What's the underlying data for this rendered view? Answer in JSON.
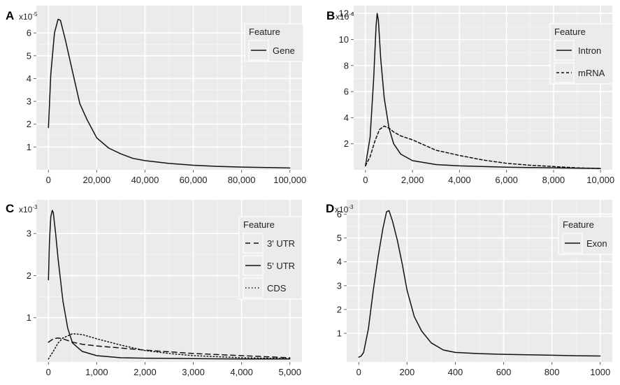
{
  "figure": {
    "panels": [
      "A",
      "B",
      "C",
      "D"
    ]
  },
  "chart_data": [
    {
      "panel": "A",
      "type": "line",
      "exponent": "x10-5",
      "x_ticks": [
        0,
        20000,
        40000,
        60000,
        80000,
        100000
      ],
      "x_tick_labels": [
        "0",
        "20,000",
        "40,000",
        "60,000",
        "80,000",
        "100,000"
      ],
      "y_ticks": [
        1,
        2,
        3,
        4,
        5,
        6
      ],
      "y_tick_labels": [
        "1",
        "2",
        "3",
        "4",
        "5",
        "6"
      ],
      "xlim": [
        -5000,
        105000
      ],
      "ylim": [
        0,
        7.2
      ],
      "grid": true,
      "legend": {
        "title": "Feature",
        "placement": "top-right",
        "entries": [
          {
            "label": "Gene",
            "dash": "solid"
          }
        ]
      },
      "series": [
        {
          "name": "Gene",
          "dash": "solid",
          "x": [
            0,
            1000,
            2500,
            4000,
            5000,
            7000,
            10000,
            13000,
            16000,
            20000,
            25000,
            30000,
            35000,
            40000,
            50000,
            60000,
            70000,
            80000,
            90000,
            100000
          ],
          "y": [
            1.85,
            4.2,
            6.0,
            6.6,
            6.55,
            5.7,
            4.3,
            2.9,
            2.2,
            1.4,
            0.95,
            0.7,
            0.5,
            0.4,
            0.28,
            0.2,
            0.15,
            0.12,
            0.1,
            0.08
          ]
        }
      ]
    },
    {
      "panel": "B",
      "type": "line",
      "exponent": "x10-4",
      "x_ticks": [
        0,
        2000,
        4000,
        6000,
        8000,
        10000
      ],
      "x_tick_labels": [
        "0",
        "2,000",
        "4,000",
        "6,000",
        "8,000",
        "10,000"
      ],
      "y_ticks": [
        2,
        4,
        6,
        8,
        10,
        12
      ],
      "y_tick_labels": [
        "2",
        "4",
        "6",
        "8",
        "10",
        "12"
      ],
      "xlim": [
        -500,
        10500
      ],
      "ylim": [
        0,
        12.6
      ],
      "grid": true,
      "legend": {
        "title": "Feature",
        "placement": "top-right",
        "entries": [
          {
            "label": "Intron",
            "dash": "solid"
          },
          {
            "label": "mRNA",
            "dash": "dashed"
          }
        ]
      },
      "series": [
        {
          "name": "Intron",
          "dash": "solid",
          "x": [
            0,
            200,
            350,
            450,
            500,
            550,
            650,
            800,
            1000,
            1200,
            1500,
            2000,
            3000,
            4000,
            6000,
            8000,
            10000
          ],
          "y": [
            0.3,
            2.5,
            7.0,
            11.0,
            12.0,
            11.5,
            8.5,
            5.5,
            3.2,
            2.0,
            1.2,
            0.7,
            0.4,
            0.3,
            0.2,
            0.15,
            0.1
          ]
        },
        {
          "name": "mRNA",
          "dash": "dashed",
          "x": [
            0,
            200,
            400,
            600,
            800,
            1000,
            1200,
            1500,
            2000,
            2500,
            3000,
            4000,
            5000,
            6000,
            7000,
            8000,
            9000,
            10000
          ],
          "y": [
            0.3,
            1.0,
            2.2,
            3.1,
            3.35,
            3.2,
            2.9,
            2.6,
            2.3,
            1.9,
            1.5,
            1.1,
            0.75,
            0.5,
            0.35,
            0.25,
            0.15,
            0.1
          ]
        }
      ]
    },
    {
      "panel": "C",
      "type": "line",
      "exponent": "x10-3",
      "x_ticks": [
        0,
        1000,
        2000,
        3000,
        4000,
        5000
      ],
      "x_tick_labels": [
        "0",
        "1,000",
        "2,000",
        "3,000",
        "4,000",
        "5,000"
      ],
      "y_ticks": [
        1,
        2,
        3
      ],
      "y_tick_labels": [
        "1",
        "2",
        "3"
      ],
      "xlim": [
        -250,
        5250
      ],
      "ylim": [
        -0.05,
        3.8
      ],
      "grid": true,
      "legend": {
        "title": "Feature",
        "placement": "top-right",
        "entries": [
          {
            "label": "3' UTR",
            "dash": "longdash"
          },
          {
            "label": "5' UTR",
            "dash": "solid"
          },
          {
            "label": "CDS",
            "dash": "dotted"
          }
        ]
      },
      "series": [
        {
          "name": "3' UTR",
          "dash": "longdash",
          "x": [
            0,
            100,
            200,
            300,
            500,
            700,
            1000,
            1500,
            2000,
            3000,
            4000,
            5000
          ],
          "y": [
            0.42,
            0.5,
            0.52,
            0.5,
            0.42,
            0.37,
            0.33,
            0.28,
            0.23,
            0.15,
            0.1,
            0.05
          ]
        },
        {
          "name": "5' UTR",
          "dash": "solid",
          "x": [
            0,
            20,
            50,
            80,
            100,
            150,
            200,
            300,
            400,
            500,
            700,
            1000,
            1500,
            2000,
            3000,
            4000,
            5000
          ],
          "y": [
            1.9,
            2.8,
            3.4,
            3.55,
            3.5,
            3.0,
            2.4,
            1.4,
            0.75,
            0.4,
            0.2,
            0.1,
            0.05,
            0.04,
            0.03,
            0.02,
            0.02
          ]
        },
        {
          "name": "CDS",
          "dash": "dotted",
          "x": [
            0,
            100,
            200,
            300,
            500,
            700,
            1000,
            1500,
            2000,
            2500,
            3000,
            4000,
            5000
          ],
          "y": [
            0.02,
            0.2,
            0.4,
            0.52,
            0.62,
            0.6,
            0.5,
            0.35,
            0.22,
            0.15,
            0.1,
            0.05,
            0.03
          ]
        }
      ]
    },
    {
      "panel": "D",
      "type": "line",
      "exponent": "x10-3",
      "x_ticks": [
        0,
        200,
        400,
        600,
        800,
        1000
      ],
      "x_tick_labels": [
        "0",
        "200",
        "400",
        "600",
        "800",
        "1000"
      ],
      "y_ticks": [
        1,
        2,
        3,
        4,
        5,
        6
      ],
      "y_tick_labels": [
        "1",
        "2",
        "3",
        "4",
        "5",
        "6"
      ],
      "xlim": [
        -50,
        1050
      ],
      "ylim": [
        -0.2,
        6.6
      ],
      "grid": true,
      "legend": {
        "title": "Feature",
        "placement": "top-right",
        "entries": [
          {
            "label": "Exon",
            "dash": "solid"
          }
        ]
      },
      "series": [
        {
          "name": "Exon",
          "dash": "solid",
          "x": [
            0,
            10,
            20,
            40,
            60,
            80,
            100,
            115,
            125,
            140,
            160,
            180,
            200,
            230,
            260,
            300,
            350,
            400,
            500,
            600,
            700,
            800,
            900,
            1000
          ],
          "y": [
            0.0,
            0.05,
            0.2,
            1.2,
            2.8,
            4.2,
            5.4,
            6.1,
            6.15,
            5.7,
            4.9,
            3.9,
            2.8,
            1.7,
            1.1,
            0.6,
            0.3,
            0.2,
            0.15,
            0.12,
            0.1,
            0.08,
            0.06,
            0.05
          ]
        }
      ]
    }
  ]
}
